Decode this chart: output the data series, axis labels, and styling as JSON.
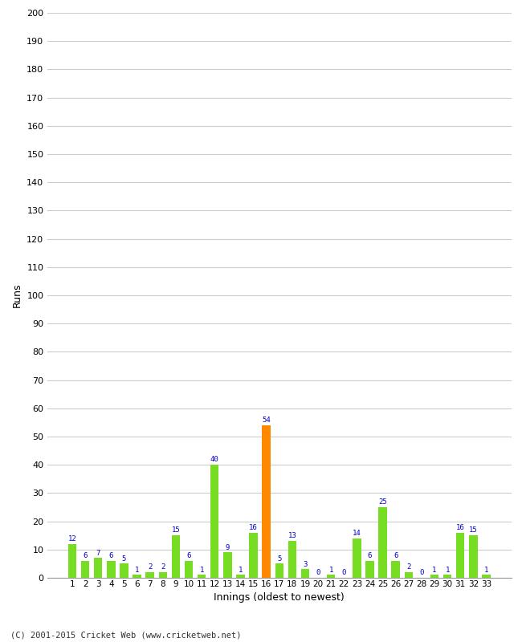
{
  "innings": [
    1,
    2,
    3,
    4,
    5,
    6,
    7,
    8,
    9,
    10,
    11,
    12,
    13,
    14,
    15,
    16,
    17,
    18,
    19,
    20,
    21,
    22,
    23,
    24,
    25,
    26,
    27,
    28,
    29,
    30,
    31,
    32,
    33
  ],
  "runs": [
    12,
    6,
    7,
    6,
    5,
    1,
    2,
    2,
    15,
    6,
    1,
    40,
    9,
    1,
    16,
    54,
    5,
    13,
    3,
    0,
    1,
    0,
    14,
    6,
    25,
    6,
    2,
    0,
    1,
    1,
    16,
    15,
    1
  ],
  "highlight_innings": 16,
  "bar_color_normal": "#77dd22",
  "bar_color_highlight": "#ff8800",
  "label_color": "#0000cc",
  "xlabel": "Innings (oldest to newest)",
  "ylabel": "Runs",
  "ylim": [
    0,
    200
  ],
  "yticks": [
    0,
    10,
    20,
    30,
    40,
    50,
    60,
    70,
    80,
    90,
    100,
    110,
    120,
    130,
    140,
    150,
    160,
    170,
    180,
    190,
    200
  ],
  "footer": "(C) 2001-2015 Cricket Web (www.cricketweb.net)",
  "background_color": "#ffffff",
  "grid_color": "#cccccc"
}
